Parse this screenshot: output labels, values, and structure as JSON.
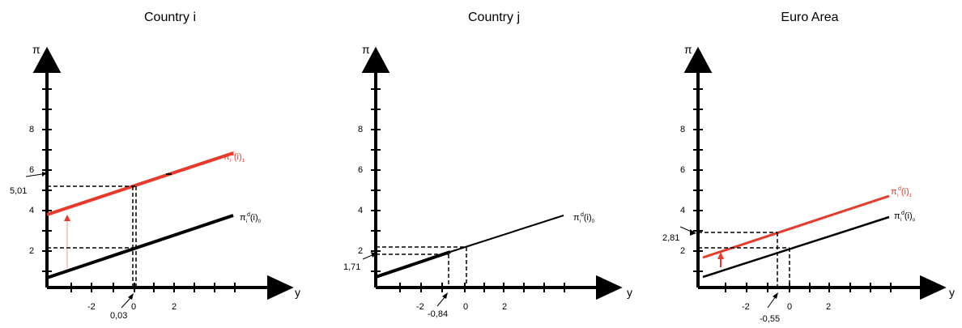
{
  "panels": [
    {
      "title": "Country i",
      "y_axis_symbol": "π",
      "x_axis_symbol": "y",
      "y_ticks": [
        "2",
        "4",
        "6",
        "8"
      ],
      "x_ticks": [
        "-2",
        "0",
        "2"
      ],
      "lines": [
        {
          "name": "π",
          "sub": "i",
          "sup": "d",
          "arg": "(i)",
          "tail": "0",
          "color": "#000000"
        },
        {
          "name": "π",
          "sub": "i",
          "sup": "d",
          "arg": "(i)",
          "tail": "1",
          "color": "#e8392b"
        }
      ],
      "annotations": [
        "5,01",
        "0,03"
      ]
    },
    {
      "title": "Country j",
      "y_axis_symbol": "π",
      "x_axis_symbol": "y",
      "y_ticks": [
        "2",
        "4",
        "6",
        "8"
      ],
      "x_ticks": [
        "-2",
        "0",
        "2"
      ],
      "lines": [
        {
          "name": "π",
          "sub": "i",
          "sup": "d",
          "arg": "(i)",
          "tail": "0",
          "color": "#000000"
        }
      ],
      "annotations": [
        "1,71",
        "-0,84"
      ]
    },
    {
      "title": "Euro Area",
      "y_axis_symbol": "π",
      "x_axis_symbol": "y",
      "y_ticks": [
        "2",
        "4",
        "6",
        "8"
      ],
      "x_ticks": [
        "-2",
        "0",
        "2"
      ],
      "lines": [
        {
          "name": "π",
          "sub": "i",
          "sup": "d",
          "arg": "(i)",
          "tail": "1",
          "color": "#e8392b"
        },
        {
          "name": "π",
          "sub": "i",
          "sup": "d",
          "arg": "(i)",
          "tail": "o",
          "color": "#000000"
        }
      ],
      "annotations": [
        "2,81",
        "-0,55"
      ]
    }
  ]
}
